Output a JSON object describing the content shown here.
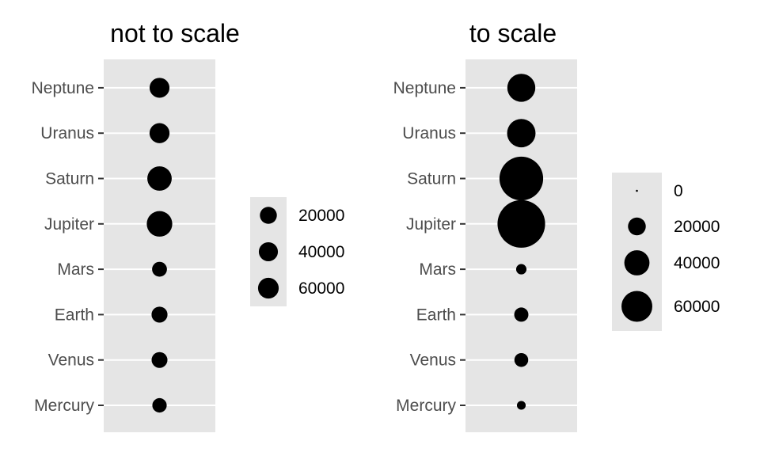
{
  "chart_data": [
    {
      "type": "scatter",
      "title": "not to scale",
      "xlabel": "",
      "ylabel": "",
      "categories": [
        "Mercury",
        "Venus",
        "Earth",
        "Mars",
        "Jupiter",
        "Saturn",
        "Uranus",
        "Neptune"
      ],
      "values": [
        4879,
        12104,
        12756,
        6792,
        142984,
        120536,
        51118,
        49528
      ],
      "size_scale": "area, not to scale (radius offset)",
      "legend": {
        "position": "right",
        "breaks": [
          20000,
          40000,
          60000
        ]
      },
      "point_color": "#000000",
      "panel_background": "#e5e5e5",
      "grid": true
    },
    {
      "type": "scatter",
      "title": "to scale",
      "xlabel": "",
      "ylabel": "",
      "categories": [
        "Mercury",
        "Venus",
        "Earth",
        "Mars",
        "Jupiter",
        "Saturn",
        "Uranus",
        "Neptune"
      ],
      "values": [
        4879,
        12104,
        12756,
        6792,
        142984,
        120536,
        51118,
        49528
      ],
      "size_scale": "area, to scale (radius proportional to sqrt of value)",
      "legend": {
        "position": "right",
        "breaks": [
          0,
          20000,
          40000,
          60000
        ]
      },
      "point_color": "#000000",
      "panel_background": "#e5e5e5",
      "grid": true
    }
  ]
}
